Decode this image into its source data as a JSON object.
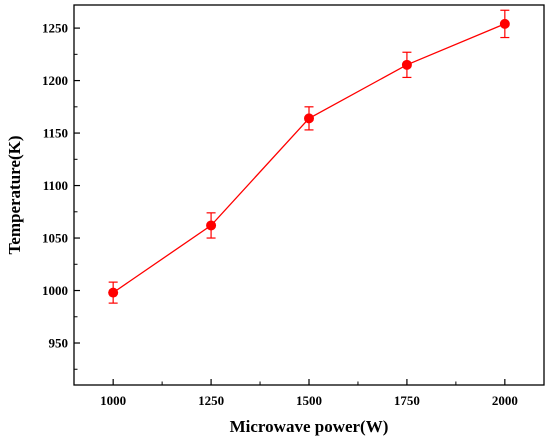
{
  "chart_data": {
    "type": "line",
    "title": "",
    "xlabel": "Microwave power(W)",
    "ylabel": "Temperature(K)",
    "x": [
      1000,
      1250,
      1500,
      1750,
      2000
    ],
    "xlim": [
      900,
      2100
    ],
    "ylim": [
      910,
      1272
    ],
    "xticks": [
      "1000",
      "1250",
      "1500",
      "1750",
      "2000"
    ],
    "yticks": [
      "950",
      "1000",
      "1050",
      "1100",
      "1150",
      "1200",
      "1250"
    ],
    "grid": false,
    "legend": "none",
    "series": [
      {
        "values": [
          998,
          1062,
          1164,
          1215,
          1254
        ],
        "error": [
          10,
          12,
          11,
          12,
          13
        ],
        "color": "#ff0000",
        "marker": "circle"
      }
    ]
  }
}
